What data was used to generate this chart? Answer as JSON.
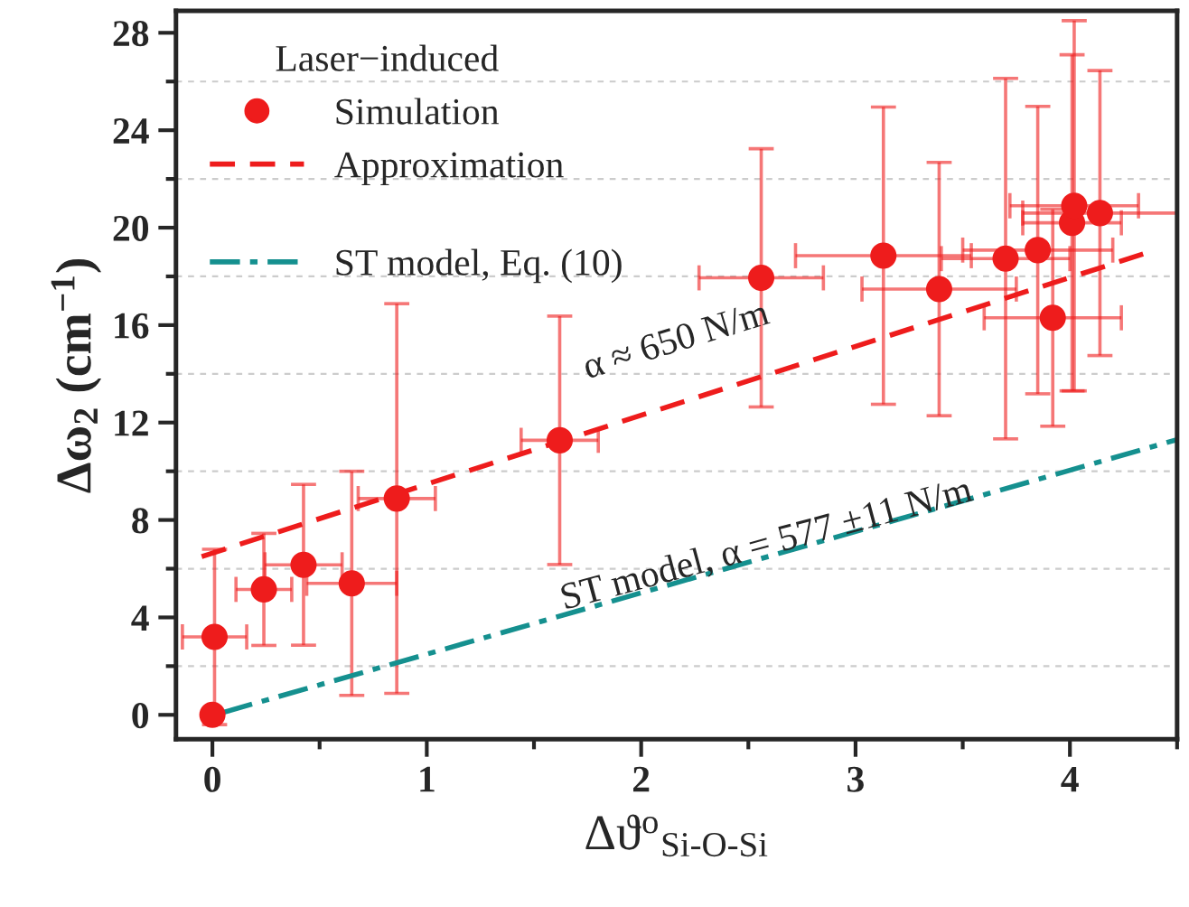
{
  "chart_data": {
    "type": "scatter",
    "xlabel": "Δϑ$^{o}$$_{Si-O-Si}$",
    "ylabel": "Δω$_{2}$ (cm$^{−1}$)",
    "legend_title": "Laser−induced",
    "xlim": [
      -0.17,
      4.5
    ],
    "xticks": [
      0,
      {
        "value": 0.5,
        "label": null
      },
      1,
      {
        "value": 1.5,
        "label": null
      },
      2,
      {
        "value": 2.5,
        "label": null
      },
      3,
      {
        "value": 3.5,
        "label": null
      },
      4,
      {
        "value": 4.5,
        "label": null
      }
    ],
    "ylim": [
      -1,
      28.9
    ],
    "yticks": [
      0,
      {
        "value": 2,
        "label": null
      },
      4,
      {
        "value": 6,
        "label": null
      },
      8,
      {
        "value": 10,
        "label": null
      },
      12,
      {
        "value": 14,
        "label": null
      },
      16,
      {
        "value": 18,
        "label": null
      },
      20,
      {
        "value": 22,
        "label": null
      },
      24,
      {
        "value": 26,
        "label": null
      },
      28
    ],
    "grid": "y",
    "legend": "top left",
    "series": [
      {
        "name": "Simulation",
        "marker": "circle",
        "color": "#ee1c1c",
        "x": [
          0,
          0.01,
          0.24,
          0.425,
          0.65,
          0.86,
          1.62,
          2.56,
          3.13,
          3.39,
          3.7,
          3.85,
          3.92,
          4.01,
          4.02,
          4.14
        ],
        "values": [
          0,
          3.2,
          5.15,
          6.16,
          5.4,
          8.88,
          11.27,
          17.94,
          18.85,
          17.48,
          18.73,
          19.08,
          16.3,
          20.2,
          20.9,
          20.6
        ],
        "errors": [
          null,
          3.6,
          2.3,
          3.3,
          4.6,
          8,
          5.1,
          5.3,
          6.1,
          5.2,
          7.4,
          5.9,
          4.45,
          6.9,
          7.6,
          5.85
        ],
        "xerrors": [
          null,
          0.15,
          0.13,
          0.18,
          0.21,
          0.18,
          0.18,
          0.29,
          0.41,
          0.36,
          0.3,
          0.35,
          0.32,
          0.23,
          0.3,
          0.36
        ]
      },
      {
        "name": "Approximation",
        "type": "line",
        "line_style": "dashed",
        "color": "#ee1c1c",
        "x": [
          -0.05,
          4.37
        ],
        "values": [
          6.5,
          19.0
        ]
      },
      {
        "name": "ST model, Eq. (10)",
        "type": "line",
        "line_style": "dashdot",
        "color": "#15908f",
        "x": [
          0.05,
          4.5
        ],
        "values": [
          0.1,
          11.3
        ]
      }
    ],
    "annotations": [
      "α ≈ 650 N/m",
      "ST model, α = 577 ±11 N/m"
    ]
  }
}
